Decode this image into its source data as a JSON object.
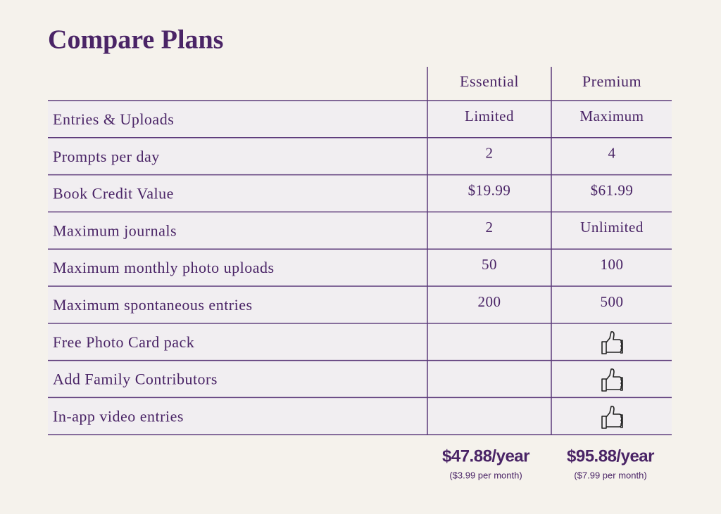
{
  "title": "Compare Plans",
  "table": {
    "columns": [
      "Essential",
      "Premium"
    ],
    "rows": [
      {
        "feature": "Entries & Uploads",
        "essential": "Limited",
        "premium": "Maximum"
      },
      {
        "feature": "Prompts per day",
        "essential": "2",
        "premium": "4"
      },
      {
        "feature": "Book Credit Value",
        "essential": "$19.99",
        "premium": "$61.99"
      },
      {
        "feature": "Maximum journals",
        "essential": "2",
        "premium": "Unlimited"
      },
      {
        "feature": "Maximum monthly photo uploads",
        "essential": "50",
        "premium": "100"
      },
      {
        "feature": "Maximum spontaneous entries",
        "essential": "200",
        "premium": "500"
      },
      {
        "feature": "Free Photo Card pack"
      },
      {
        "feature": "Add Family Contributors"
      },
      {
        "feature": "In-app video entries"
      }
    ],
    "prices": [
      {
        "price": "$47.88/year",
        "monthly": "($3.99 per month)"
      },
      {
        "price": "$95.88/year",
        "monthly": "($7.99 per month)"
      }
    ]
  }
}
